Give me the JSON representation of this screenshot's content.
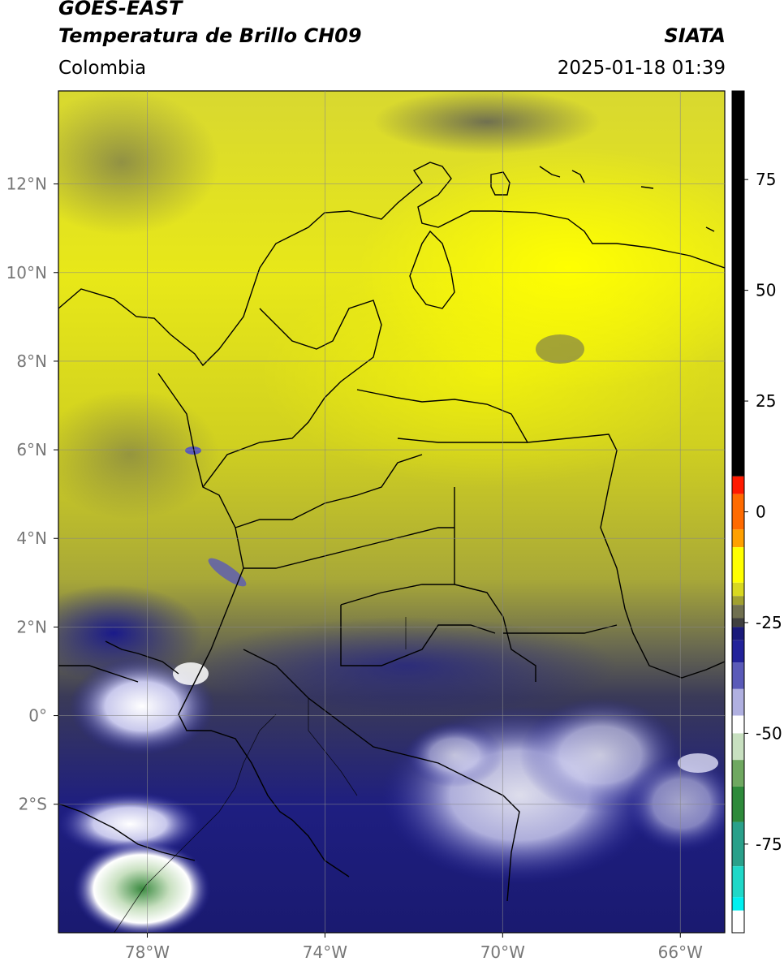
{
  "header": {
    "satellite": "GOES-EAST",
    "product": "Temperatura de Brillo CH09",
    "brand": "SIATA",
    "region": "Colombia",
    "timestamp": "2025-01-18 01:39"
  },
  "map": {
    "lon_range": [
      -80.0,
      -65.0
    ],
    "lat_range": [
      -4.9,
      14.1
    ],
    "lon_ticks": [
      {
        "value": -78,
        "label": "78°W"
      },
      {
        "value": -74,
        "label": "74°W"
      },
      {
        "value": -70,
        "label": "70°W"
      },
      {
        "value": -66,
        "label": "66°W"
      }
    ],
    "lat_ticks": [
      {
        "value": 12,
        "label": "12°N"
      },
      {
        "value": 10,
        "label": "10°N"
      },
      {
        "value": 8,
        "label": "8°N"
      },
      {
        "value": 6,
        "label": "6°N"
      },
      {
        "value": 4,
        "label": "4°N"
      },
      {
        "value": 2,
        "label": "2°N"
      },
      {
        "value": 0,
        "label": "0°"
      },
      {
        "value": -2,
        "label": "2°S"
      }
    ],
    "grid": true
  },
  "colorbar": {
    "range": [
      -95,
      95
    ],
    "ticks": [
      {
        "value": 75,
        "label": "75"
      },
      {
        "value": 50,
        "label": "50"
      },
      {
        "value": 25,
        "label": "25"
      },
      {
        "value": 0,
        "label": "0"
      },
      {
        "value": -25,
        "label": "-25"
      },
      {
        "value": -50,
        "label": "-50"
      },
      {
        "value": -75,
        "label": "-75"
      }
    ],
    "segments": [
      {
        "from": 8,
        "to": 95,
        "color": "#000000"
      },
      {
        "from": 4,
        "to": 8,
        "color": "#ff1a00"
      },
      {
        "from": -4,
        "to": 4,
        "color": "#ff6a00"
      },
      {
        "from": -8,
        "to": -4,
        "color": "#ffa000"
      },
      {
        "from": -16,
        "to": -8,
        "color": "#ffff00"
      },
      {
        "from": -19,
        "to": -16,
        "color": "#d8d820"
      },
      {
        "from": -21,
        "to": -19,
        "color": "#a0a030"
      },
      {
        "from": -24,
        "to": -21,
        "color": "#707050"
      },
      {
        "from": -26,
        "to": -24,
        "color": "#404040"
      },
      {
        "from": -29,
        "to": -26,
        "color": "#1a1a7a"
      },
      {
        "from": -34,
        "to": -29,
        "color": "#22229a"
      },
      {
        "from": -40,
        "to": -34,
        "color": "#5a5ab8"
      },
      {
        "from": -46,
        "to": -40,
        "color": "#b0b0e0"
      },
      {
        "from": -50,
        "to": -46,
        "color": "#ffffff"
      },
      {
        "from": -56,
        "to": -50,
        "color": "#c8e0c0"
      },
      {
        "from": -62,
        "to": -56,
        "color": "#6fa860"
      },
      {
        "from": -70,
        "to": -62,
        "color": "#2e8a3a"
      },
      {
        "from": -80,
        "to": -70,
        "color": "#2aa08a"
      },
      {
        "from": -87,
        "to": -80,
        "color": "#20d8c8"
      },
      {
        "from": -90,
        "to": -87,
        "color": "#00f0f0"
      },
      {
        "from": -95,
        "to": -90,
        "color": "#ffffff"
      }
    ]
  }
}
